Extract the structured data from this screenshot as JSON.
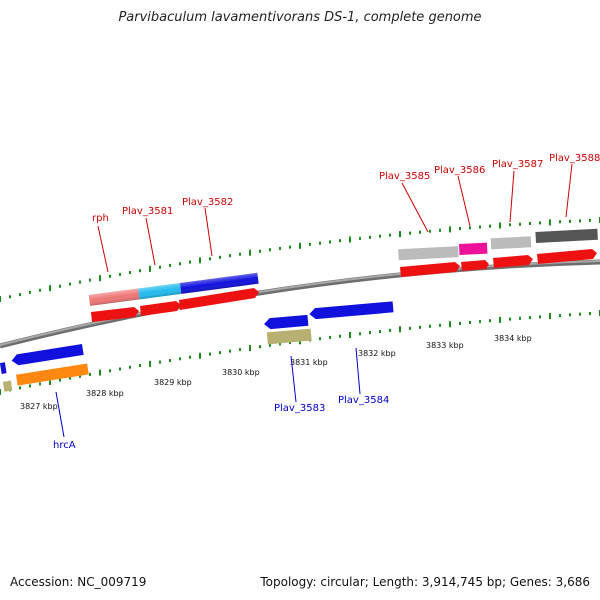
{
  "title": "Parvibaculum lavamentivorans DS-1, complete genome",
  "footer": {
    "accession": "Accession: NC_009719",
    "topology": "Topology: circular; Length: 3,914,745 bp; Genes: 3,686"
  },
  "colors": {
    "backbone": "#8c8c8c",
    "tick": "#1a8a1a",
    "upper_label": "#cc0000",
    "lower_label": "#0000cc",
    "cds": "#ee1111",
    "blue": "#1111dd",
    "cyan": "#22bbee",
    "salmon": "#ee7777",
    "orange": "#ff8811",
    "khaki": "#b8b070",
    "light_gray": "#bbbbbb",
    "magenta": "#ee1199",
    "dark_gray": "#555555"
  },
  "scale_labels": [
    "3827 kbp",
    "3828 kbp",
    "3829 kbp",
    "3830 kbp",
    "3831 kbp",
    "3832 kbp",
    "3833 kbp",
    "3834 kbp"
  ],
  "upper_genes": [
    "rph",
    "Plav_3581",
    "Plav_3582",
    "Plav_3585",
    "Plav_3586",
    "Plav_3587",
    "Plav_3588"
  ],
  "lower_genes": [
    "hrcA",
    "Plav_3583",
    "Plav_3584"
  ]
}
